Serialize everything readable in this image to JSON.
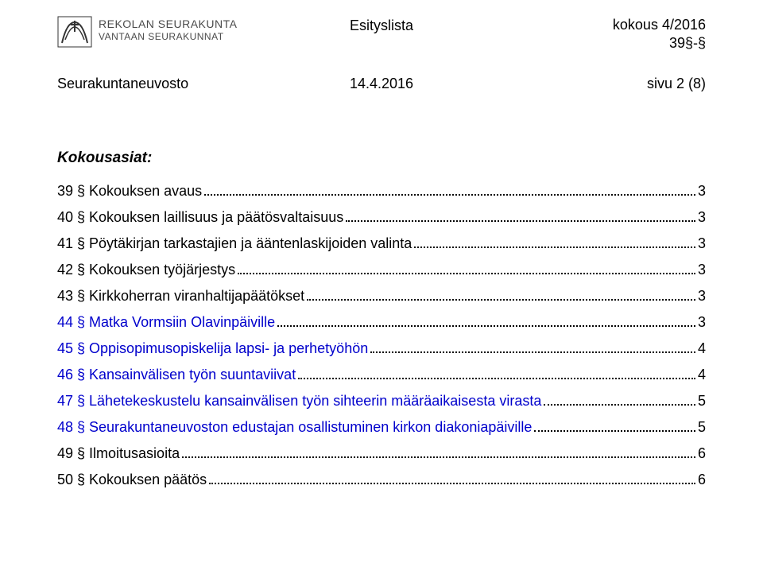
{
  "header": {
    "org1": "REKOLAN SEURAKUNTA",
    "org2": "VANTAAN SEURAKUNNAT",
    "center": "Esityslista",
    "right1": "kokous 4/2016",
    "right2": "39§-§"
  },
  "subheader": {
    "left": "Seurakuntaneuvosto",
    "mid": "14.4.2016",
    "right": "sivu 2 (8)"
  },
  "toc_title": "Kokousasiat:",
  "toc": [
    {
      "label": "39 § Kokouksen avaus",
      "page": "3",
      "blue": false
    },
    {
      "label": "40 § Kokouksen laillisuus ja päätösvaltaisuus",
      "page": "3",
      "blue": false
    },
    {
      "label": "41 § Pöytäkirjan tarkastajien ja ääntenlaskijoiden valinta",
      "page": "3",
      "blue": false
    },
    {
      "label": "42 § Kokouksen työjärjestys",
      "page": "3",
      "blue": false
    },
    {
      "label": "43 § Kirkkoherran viranhaltijapäätökset",
      "page": "3",
      "blue": false
    },
    {
      "label": "44 § Matka Vormsiin Olavinpäiville",
      "page": "3",
      "blue": true
    },
    {
      "label": "45 § Oppisopimusopiskelija lapsi- ja perhetyöhön",
      "page": "4",
      "blue": true
    },
    {
      "label": "46 § Kansainvälisen työn suuntaviivat",
      "page": "4",
      "blue": true
    },
    {
      "label": "47 § Lähetekeskustelu kansainvälisen työn sihteerin määräaikaisesta virasta",
      "page": "5",
      "blue": true
    },
    {
      "label": "48 § Seurakuntaneuvoston edustajan osallistuminen kirkon diakoniapäiville",
      "page": "5",
      "blue": true
    },
    {
      "label": "49 § Ilmoitusasioita",
      "page": "6",
      "blue": false
    },
    {
      "label": "50 § Kokouksen päätös",
      "page": "6",
      "blue": false
    }
  ]
}
